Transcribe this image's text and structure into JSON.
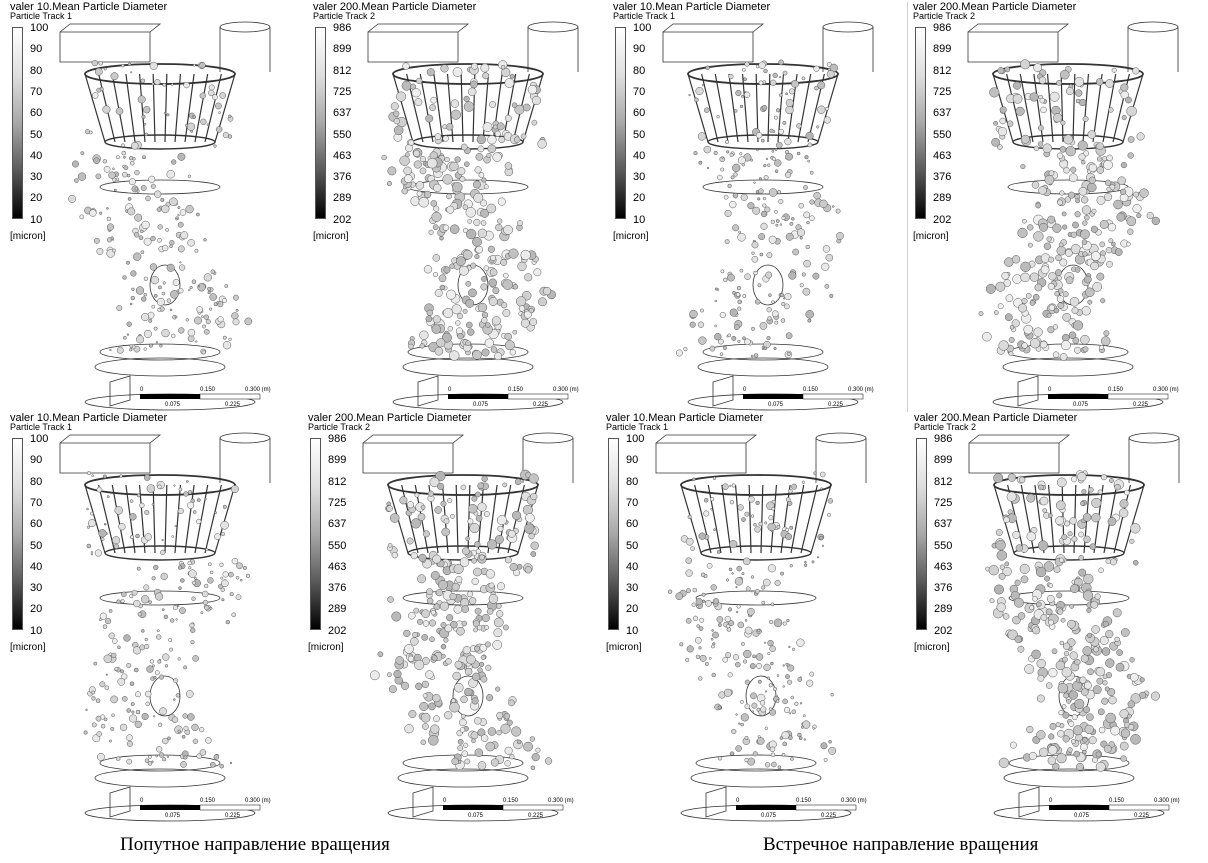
{
  "panels": [
    {
      "title": "valer 10.Mean Particle Diameter",
      "subtitle": "Particle Track 1",
      "ticks": [
        "100",
        "90",
        "80",
        "70",
        "60",
        "50",
        "40",
        "30",
        "20",
        "10"
      ],
      "unit": "[micron]",
      "scale": [
        "0",
        "0.150",
        "0.300 (m)",
        "0.075",
        "0.225"
      ]
    },
    {
      "title": "valer 200.Mean Particle Diameter",
      "subtitle": "Particle Track 2",
      "ticks": [
        "986",
        "899",
        "812",
        "725",
        "637",
        "550",
        "463",
        "376",
        "289",
        "202"
      ],
      "unit": "[micron]",
      "scale": [
        "0",
        "0.150",
        "0.300 (m)",
        "0.075",
        "0.225"
      ]
    },
    {
      "title": "valer 10.Mean Particle Diameter",
      "subtitle": "Particle Track 1",
      "ticks": [
        "100",
        "90",
        "80",
        "70",
        "60",
        "50",
        "40",
        "30",
        "20",
        "10"
      ],
      "unit": "[micron]",
      "scale": [
        "0",
        "0.150",
        "0.300 (m)",
        "0.075",
        "0.225"
      ]
    },
    {
      "title": "valer 200.Mean Particle Diameter",
      "subtitle": "Particle Track 2",
      "ticks": [
        "986",
        "899",
        "812",
        "725",
        "637",
        "550",
        "463",
        "376",
        "289",
        "202"
      ],
      "unit": "[micron]",
      "scale": [
        "0",
        "0.150",
        "0.300 (m)",
        "0.075",
        "0.225"
      ]
    },
    {
      "title": "valer 10.Mean Particle Diameter",
      "subtitle": "Particle Track 1",
      "ticks": [
        "100",
        "90",
        "80",
        "70",
        "60",
        "50",
        "40",
        "30",
        "20",
        "10"
      ],
      "unit": "[micron]",
      "scale": [
        "0",
        "0.150",
        "0.300 (m)",
        "0.075",
        "0.225"
      ]
    },
    {
      "title": "valer 200.Mean Particle Diameter",
      "subtitle": "Particle Track 2",
      "ticks": [
        "986",
        "899",
        "812",
        "725",
        "637",
        "550",
        "463",
        "376",
        "289",
        "202"
      ],
      "unit": "[micron]",
      "scale": [
        "0",
        "0.150",
        "0.300 (m)",
        "0.075",
        "0.225"
      ]
    },
    {
      "title": "valer 10.Mean Particle Diameter",
      "subtitle": "Particle Track 1",
      "ticks": [
        "100",
        "90",
        "80",
        "70",
        "60",
        "50",
        "40",
        "30",
        "20",
        "10"
      ],
      "unit": "[micron]",
      "scale": [
        "0",
        "0.150",
        "0.300 (m)",
        "0.075",
        "0.225"
      ]
    },
    {
      "title": "valer 200.Mean Particle Diameter",
      "subtitle": "Particle Track 2",
      "ticks": [
        "986",
        "899",
        "812",
        "725",
        "637",
        "550",
        "463",
        "376",
        "289",
        "202"
      ],
      "unit": "[micron]",
      "scale": [
        "0",
        "0.150",
        "0.300 (m)",
        "0.075",
        "0.225"
      ]
    }
  ],
  "captions": {
    "left": "Попутное направление вращения",
    "right": "Встречное направление вращения"
  }
}
